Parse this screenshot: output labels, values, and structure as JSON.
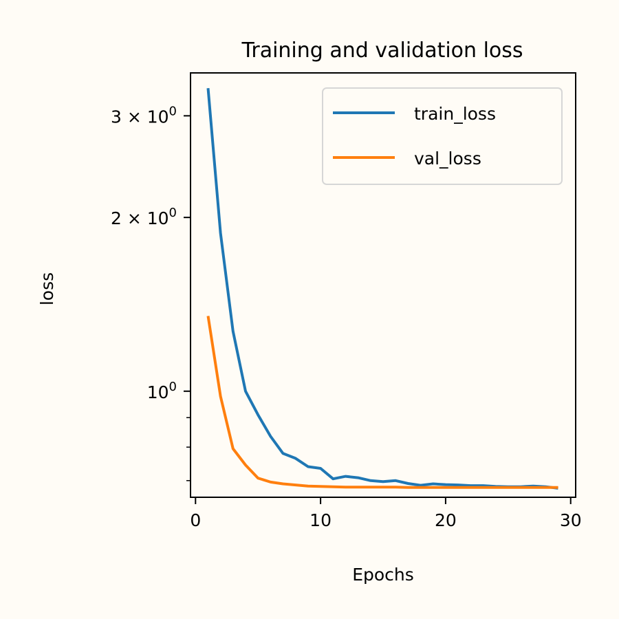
{
  "chart_data": {
    "type": "line",
    "title": "Training and validation loss",
    "xlabel": "Epochs",
    "ylabel": "loss",
    "xlim": [
      -0.4,
      30.4
    ],
    "ylim": [
      0.655,
      3.56
    ],
    "yscale": "log",
    "xticks": [
      0,
      10,
      20,
      30
    ],
    "xtick_labels": [
      "0",
      "10",
      "20",
      "30"
    ],
    "yticks": [
      1,
      2,
      3
    ],
    "ytick_labels": [
      {
        "base": "10",
        "exp": "0",
        "coef": ""
      },
      {
        "base": "10",
        "exp": "0",
        "coef": "2 × "
      },
      {
        "base": "10",
        "exp": "0",
        "coef": "3 × "
      }
    ],
    "y_minor_ticks": [
      0.7,
      0.8,
      0.9
    ],
    "grid": false,
    "legend": "top-right",
    "x": [
      1,
      2,
      3,
      4,
      5,
      6,
      7,
      8,
      9,
      10,
      11,
      12,
      13,
      14,
      15,
      16,
      17,
      18,
      19,
      20,
      21,
      22,
      23,
      24,
      25,
      26,
      27,
      28,
      29
    ],
    "series": [
      {
        "name": "train_loss",
        "color": "#1f77b4",
        "values": [
          3.35,
          1.88,
          1.27,
          1.0,
          0.91,
          0.835,
          0.78,
          0.765,
          0.74,
          0.735,
          0.705,
          0.712,
          0.708,
          0.7,
          0.697,
          0.7,
          0.692,
          0.687,
          0.691,
          0.689,
          0.688,
          0.686,
          0.686,
          0.684,
          0.683,
          0.683,
          0.685,
          0.683,
          0.679
        ]
      },
      {
        "name": "val_loss",
        "color": "#ff7f0e",
        "values": [
          1.35,
          0.98,
          0.795,
          0.745,
          0.707,
          0.696,
          0.691,
          0.688,
          0.685,
          0.684,
          0.683,
          0.682,
          0.682,
          0.682,
          0.682,
          0.682,
          0.681,
          0.681,
          0.681,
          0.681,
          0.681,
          0.681,
          0.681,
          0.681,
          0.681,
          0.681,
          0.681,
          0.681,
          0.681
        ]
      }
    ]
  }
}
